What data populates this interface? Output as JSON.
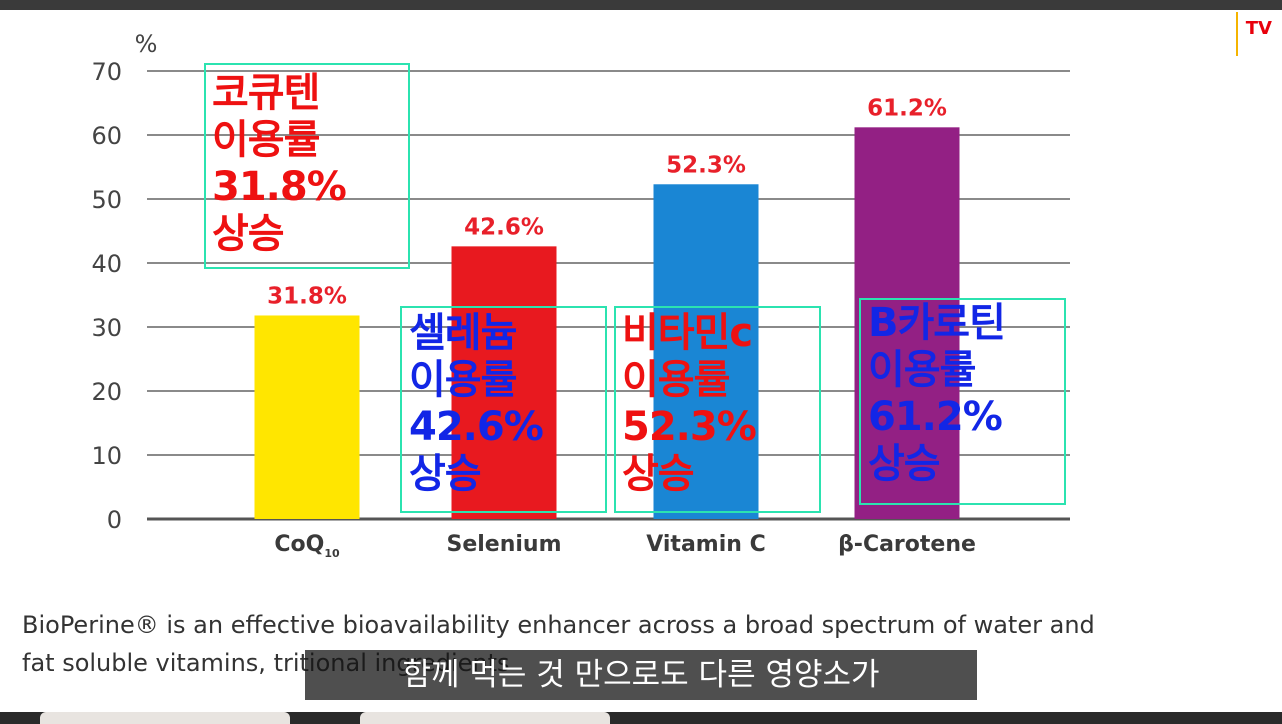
{
  "chart_data": {
    "type": "bar",
    "title": "",
    "ylabel": "%",
    "xlabel": "",
    "ylim": [
      0,
      70
    ],
    "yticks": [
      0,
      10,
      20,
      30,
      40,
      50,
      60,
      70
    ],
    "grid": true,
    "categories": [
      "CoQ",
      "Selenium",
      "Vitamin C",
      "β-Carotene"
    ],
    "category_subscripts": [
      "10",
      "",
      "",
      ""
    ],
    "values": [
      31.8,
      42.6,
      52.3,
      61.2
    ],
    "data_labels": [
      "31.8%",
      "42.6%",
      "52.3%",
      "61.2%"
    ],
    "colors": [
      "#ffe600",
      "#e8191f",
      "#1a86d4",
      "#932084"
    ],
    "label_color": "#e8202a"
  },
  "overlays": [
    {
      "lines": [
        "코큐텐",
        "이용률",
        "31.8%",
        "상승"
      ],
      "color": "red"
    },
    {
      "lines": [
        "셀레늄",
        "이용률",
        "42.6%",
        "상승"
      ],
      "color": "blue"
    },
    {
      "lines": [
        "비타민c",
        "이용률",
        "52.3%",
        "상승"
      ],
      "color": "red"
    },
    {
      "lines": [
        "B카로틴",
        "이용률",
        "61.2%",
        "상승"
      ],
      "color": "blue"
    }
  ],
  "caption": {
    "line1": "BioPerine® is an effective bioavailability enhancer across a broad spectrum of water and",
    "line2": "fat soluble vitamins,                                                          tritional ingredients"
  },
  "subtitle": "함께 먹는 것 만으로도 다른 영양소가",
  "channel_badge": "TV",
  "colors": {
    "overlay_border": "#2be3b0",
    "overlay_red": "#ee1111",
    "overlay_blue": "#1226e6"
  }
}
